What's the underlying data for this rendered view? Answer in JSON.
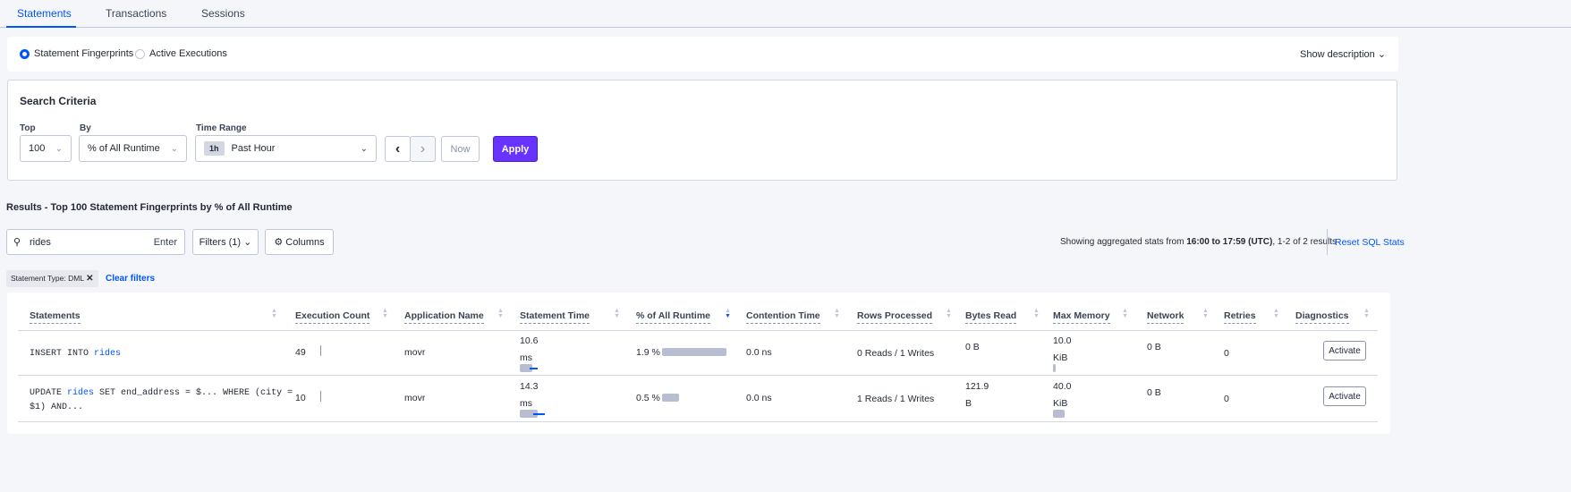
{
  "tabs": [
    {
      "label": "Statements",
      "active": true
    },
    {
      "label": "Transactions"
    },
    {
      "label": "Sessions"
    }
  ],
  "mode": {
    "options": [
      "Statement Fingerprints",
      "Active Executions"
    ],
    "selected": "Statement Fingerprints",
    "show_description": "Show description"
  },
  "search": {
    "title": "Search Criteria",
    "top_label": "Top",
    "top_value": "100",
    "by_label": "By",
    "by_value": "% of All Runtime",
    "time_label": "Time Range",
    "time_badge": "1h",
    "time_value": "Past Hour",
    "now": "Now",
    "apply": "Apply"
  },
  "results": {
    "title": "Results - Top 100 Statement Fingerprints by % of All Runtime",
    "search_value": "rides",
    "enter": "Enter",
    "filters": "Filters (1)",
    "columns": "Columns",
    "summary_pre": "Showing aggregated stats from ",
    "summary_bold": "16:00 to 17:59 (UTC)",
    "summary_post": ", 1-2 of 2 results",
    "reset": "Reset SQL Stats",
    "chip": "Statement Type: DML",
    "clear": "Clear filters"
  },
  "table": {
    "headers": [
      "Statements",
      "Execution Count",
      "Application Name",
      "Statement Time",
      "% of All Runtime",
      "Contention Time",
      "Rows Processed",
      "Bytes Read",
      "Max Memory",
      "Network",
      "Retries",
      "Diagnostics"
    ],
    "sorted_column": "% of All Runtime",
    "sort_direction": "desc",
    "rows": [
      {
        "stmt_pre": "INSERT INTO ",
        "stmt_table": "rides",
        "stmt_post": "",
        "stmt_post2": "",
        "exec": "49",
        "app": "movr",
        "time": "10.6",
        "time_unit": "ms",
        "runtime": "1.9 %",
        "runtime_pct": 1.9,
        "contention": "0.0 ns",
        "rows": "0 Reads / 1 Writes",
        "bytes": "0 B",
        "bytes_unit": "",
        "mem": "10.0",
        "mem_unit": "KiB",
        "network": "0 B",
        "retries": "0",
        "diag": "Activate"
      },
      {
        "stmt_pre": "UPDATE ",
        "stmt_table": "rides",
        "stmt_post": " SET end_address = $... WHERE (city =",
        "stmt_post2": "$1) AND...",
        "exec": "10",
        "app": "movr",
        "time": "14.3",
        "time_unit": "ms",
        "runtime": "0.5 %",
        "runtime_pct": 0.5,
        "contention": "0.0 ns",
        "rows": "1 Reads / 1 Writes",
        "bytes": "121.9",
        "bytes_unit": "B",
        "mem": "40.0",
        "mem_unit": "KiB",
        "network": "0 B",
        "retries": "0",
        "diag": "Activate"
      }
    ]
  },
  "colors": {
    "accent": "#0055ff",
    "apply": "#6933ff",
    "bar": "#b8bdd1"
  }
}
